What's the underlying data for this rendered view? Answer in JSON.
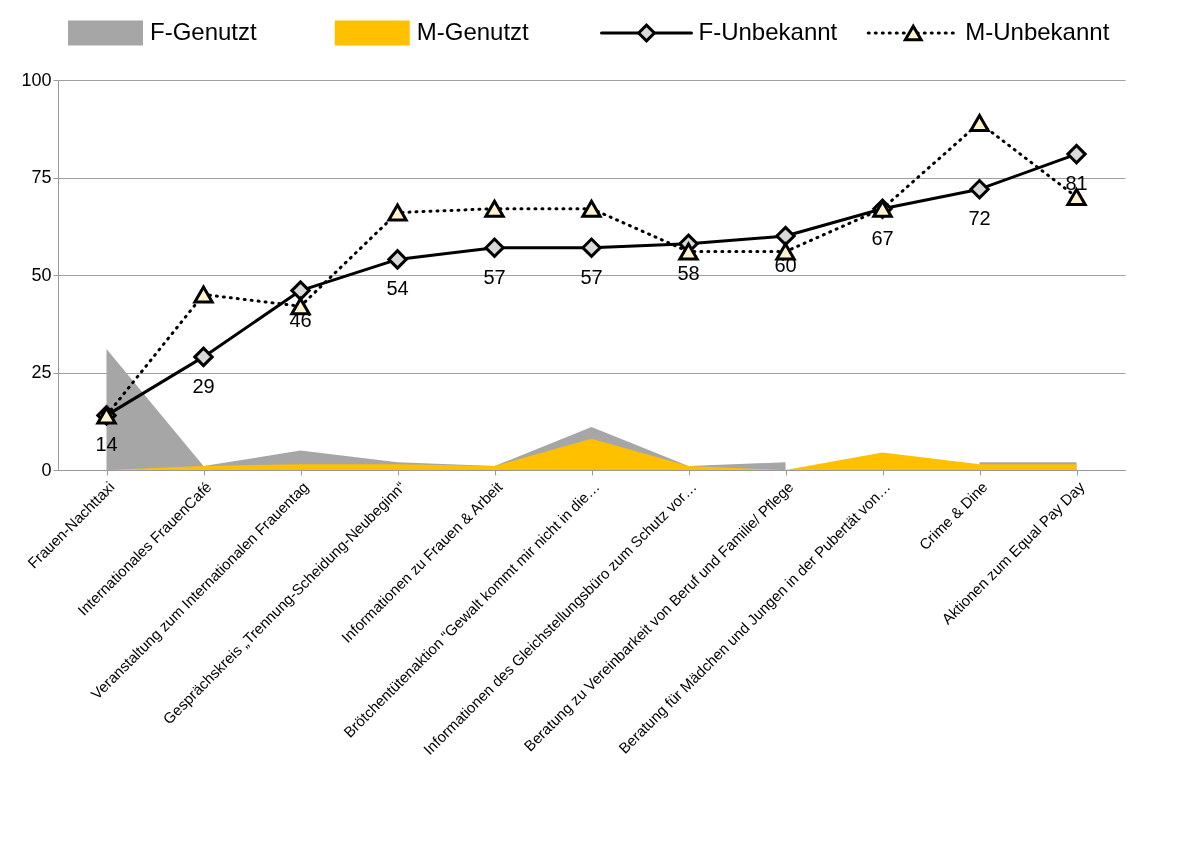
{
  "chart_data": {
    "type": "area",
    "categories": [
      "Frauen-Nachttaxi",
      "Internationales FrauenCafé",
      "Veranstaltung zum Internationalen Frauentag",
      "Gesprächskreis „Trennung-Scheidung-Neubeginn“",
      "Informationen zu Frauen & Arbeit",
      "Brötchentütenaktion “Gewalt kommt mir nicht in die…",
      "Informationen des Gleichstellungsbüro zum Schutz vor…",
      "Beratung zu Vereinbarkeit von Beruf und Familie/ Pflege",
      "Beratung für Mädchen und Jungen in der Pubertät von…",
      "Crime & Dine",
      "Aktionen zum Equal Pay Day"
    ],
    "series": [
      {
        "name": "F-Genutzt",
        "color": "#a6a6a6",
        "values": [
          31,
          1,
          5,
          2,
          1,
          11,
          1,
          2,
          null,
          2,
          2
        ]
      },
      {
        "name": "M-Genutzt",
        "color": "#ffc000",
        "values": [
          0,
          1,
          1.5,
          1.5,
          1,
          8,
          1,
          0,
          4.5,
          1.5,
          1.5
        ]
      },
      {
        "name": "F-Unbekannt",
        "type": "line",
        "color": "#000000",
        "marker": "diamond",
        "line_style": "solid",
        "values": [
          14,
          29,
          46,
          54,
          57,
          57,
          58,
          60,
          67,
          72,
          81
        ],
        "value_labels": [
          "14",
          "29",
          "46",
          "54",
          "57",
          "57",
          "58",
          "60",
          "67",
          "72",
          "81"
        ]
      },
      {
        "name": "M-Unbekannt",
        "type": "line",
        "color": "#000000",
        "marker": "triangle",
        "line_style": "dotted",
        "values": [
          14,
          45,
          42,
          66,
          67,
          67,
          56,
          56,
          67,
          89,
          70
        ]
      }
    ],
    "ylim": [
      0,
      100
    ],
    "yticks": [
      0,
      25,
      50,
      75,
      100
    ],
    "grid": "y",
    "legend": "top"
  }
}
